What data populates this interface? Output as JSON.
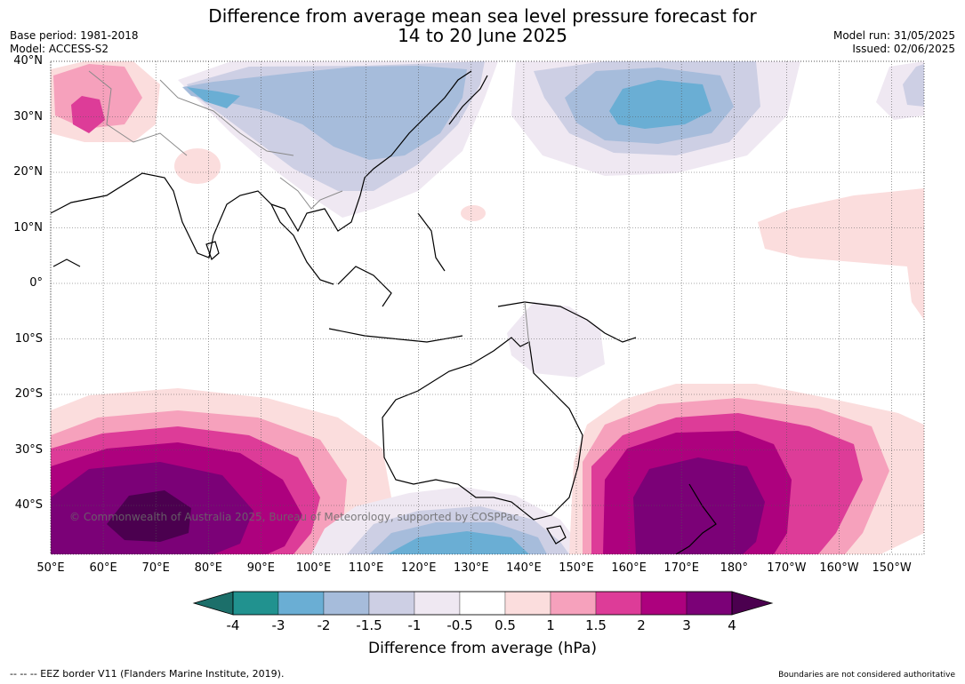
{
  "title": {
    "line1": "Difference from average mean sea level pressure forecast for",
    "line2": "14 to 20 June 2025"
  },
  "meta": {
    "base_period": "Base period: 1981-2018",
    "model": "Model: ACCESS-S2",
    "model_run": "Model run: 31/05/2025",
    "issued": "Issued: 02/06/2025"
  },
  "latitude_labels": [
    "40°N",
    "30°N",
    "20°N",
    "10°N",
    "0°",
    "10°S",
    "20°S",
    "30°S",
    "40°S"
  ],
  "longitude_labels": [
    "50°E",
    "60°E",
    "70°E",
    "80°E",
    "90°E",
    "100°E",
    "110°E",
    "120°E",
    "130°E",
    "140°E",
    "150°E",
    "160°E",
    "170°E",
    "180°",
    "170°W",
    "160°W",
    "150°W"
  ],
  "copyright": "© Commonwealth of Australia 2025, Bureau of Meteorology, supported by COSPPac",
  "colorbar": {
    "ticks": [
      "-4",
      "-3",
      "-2",
      "-1.5",
      "-1",
      "-0.5",
      "0.5",
      "1",
      "1.5",
      "2",
      "3",
      "4"
    ],
    "colors": [
      "#1c6f6a",
      "#21928f",
      "#6aaed4",
      "#a6bcdb",
      "#cdcfe4",
      "#efe8f2",
      "#ffffff",
      "#fbdddd",
      "#f6a1bc",
      "#dd3c98",
      "#ad017e",
      "#7b0177",
      "#4b004f"
    ],
    "label": "Difference from average (hPa)"
  },
  "footer": {
    "eez": "--  --  -- EEZ border V11 (Flanders Marine Institute, 2019).",
    "boundaries": "Boundaries are not considered authoritative"
  }
}
